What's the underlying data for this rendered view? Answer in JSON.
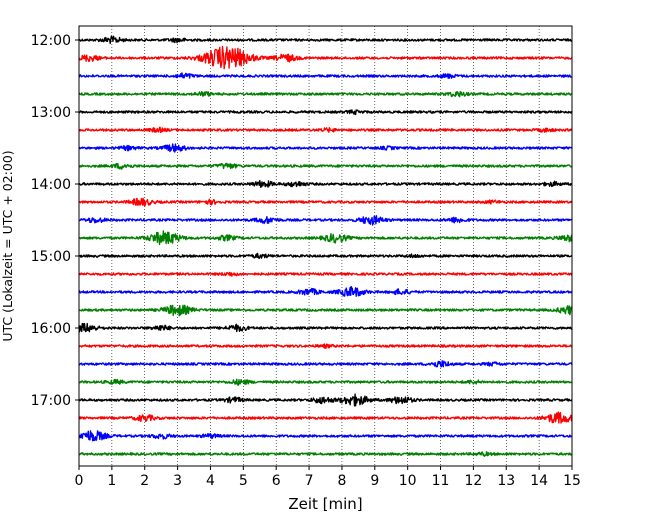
{
  "chart_data": {
    "type": "line",
    "title": "",
    "xlabel": "Zeit  [min]",
    "ylabel": "UTC (Lokalzeit = UTC + 02:00)",
    "xlim": [
      0,
      15
    ],
    "x_ticks": [
      0,
      1,
      2,
      3,
      4,
      5,
      6,
      7,
      8,
      9,
      10,
      11,
      12,
      13,
      14,
      15
    ],
    "x_tick_labels": [
      "0",
      "1",
      "2",
      "3",
      "4",
      "5",
      "6",
      "7",
      "8",
      "9",
      "10",
      "11",
      "12",
      "13",
      "14",
      "15"
    ],
    "y_tick_labels": [
      "12:00",
      "13:00",
      "14:00",
      "15:00",
      "16:00",
      "17:00"
    ],
    "grid": "vertical dotted lines at each minute",
    "trace_interval_min": 15,
    "trace_colors": [
      "#000000",
      "#ff0000",
      "#0000ff",
      "#008000"
    ],
    "traces": [
      {
        "start": "12:00",
        "color": "#000000",
        "bursts": [
          {
            "x": 1.0,
            "amp": 0.25
          },
          {
            "x": 3.0,
            "amp": 0.15
          }
        ]
      },
      {
        "start": "12:15",
        "color": "#ff0000",
        "bursts": [
          {
            "x": 0.3,
            "amp": 0.25
          },
          {
            "x": 4.5,
            "amp": 1.0
          },
          {
            "x": 6.3,
            "amp": 0.3
          }
        ]
      },
      {
        "start": "12:30",
        "color": "#0000ff",
        "bursts": [
          {
            "x": 3.2,
            "amp": 0.2
          },
          {
            "x": 11.2,
            "amp": 0.15
          }
        ]
      },
      {
        "start": "12:45",
        "color": "#008000",
        "bursts": [
          {
            "x": 3.8,
            "amp": 0.15
          },
          {
            "x": 11.5,
            "amp": 0.2
          }
        ]
      },
      {
        "start": "13:00",
        "color": "#000000",
        "bursts": [
          {
            "x": 8.4,
            "amp": 0.12
          }
        ]
      },
      {
        "start": "13:15",
        "color": "#ff0000",
        "bursts": [
          {
            "x": 2.4,
            "amp": 0.15
          },
          {
            "x": 7.6,
            "amp": 0.12
          },
          {
            "x": 14.2,
            "amp": 0.12
          }
        ]
      },
      {
        "start": "13:30",
        "color": "#0000ff",
        "bursts": [
          {
            "x": 1.5,
            "amp": 0.15
          },
          {
            "x": 2.9,
            "amp": 0.3
          },
          {
            "x": 9.4,
            "amp": 0.1
          }
        ]
      },
      {
        "start": "13:45",
        "color": "#008000",
        "bursts": [
          {
            "x": 1.3,
            "amp": 0.2
          },
          {
            "x": 4.5,
            "amp": 0.2
          }
        ]
      },
      {
        "start": "14:00",
        "color": "#000000",
        "bursts": [
          {
            "x": 5.6,
            "amp": 0.25
          },
          {
            "x": 6.6,
            "amp": 0.2
          },
          {
            "x": 14.4,
            "amp": 0.15
          }
        ]
      },
      {
        "start": "14:15",
        "color": "#ff0000",
        "bursts": [
          {
            "x": 1.9,
            "amp": 0.3
          },
          {
            "x": 4.0,
            "amp": 0.15
          },
          {
            "x": 12.6,
            "amp": 0.1
          }
        ]
      },
      {
        "start": "14:30",
        "color": "#0000ff",
        "bursts": [
          {
            "x": 0.5,
            "amp": 0.2
          },
          {
            "x": 5.7,
            "amp": 0.25
          },
          {
            "x": 8.9,
            "amp": 0.35
          },
          {
            "x": 11.5,
            "amp": 0.2
          }
        ]
      },
      {
        "start": "14:45",
        "color": "#008000",
        "bursts": [
          {
            "x": 2.6,
            "amp": 0.55
          },
          {
            "x": 4.5,
            "amp": 0.2
          },
          {
            "x": 7.8,
            "amp": 0.35
          },
          {
            "x": 14.9,
            "amp": 0.25
          }
        ]
      },
      {
        "start": "15:00",
        "color": "#000000",
        "bursts": [
          {
            "x": 5.5,
            "amp": 0.15
          },
          {
            "x": 10.2,
            "amp": 0.1
          }
        ]
      },
      {
        "start": "15:15",
        "color": "#ff0000",
        "bursts": [
          {
            "x": 4.6,
            "amp": 0.12
          }
        ]
      },
      {
        "start": "15:30",
        "color": "#0000ff",
        "bursts": [
          {
            "x": 7.0,
            "amp": 0.25
          },
          {
            "x": 8.3,
            "amp": 0.4
          },
          {
            "x": 9.8,
            "amp": 0.2
          }
        ]
      },
      {
        "start": "15:45",
        "color": "#008000",
        "bursts": [
          {
            "x": 3.0,
            "amp": 0.45
          },
          {
            "x": 14.95,
            "amp": 0.35
          }
        ]
      },
      {
        "start": "16:00",
        "color": "#000000",
        "bursts": [
          {
            "x": 0.2,
            "amp": 0.35
          },
          {
            "x": 2.5,
            "amp": 0.2
          },
          {
            "x": 4.8,
            "amp": 0.25
          }
        ]
      },
      {
        "start": "16:15",
        "color": "#ff0000",
        "bursts": [
          {
            "x": 7.5,
            "amp": 0.1
          }
        ]
      },
      {
        "start": "16:30",
        "color": "#0000ff",
        "bursts": [
          {
            "x": 11.0,
            "amp": 0.25
          },
          {
            "x": 12.6,
            "amp": 0.12
          }
        ]
      },
      {
        "start": "16:45",
        "color": "#008000",
        "bursts": [
          {
            "x": 1.1,
            "amp": 0.15
          },
          {
            "x": 4.9,
            "amp": 0.2
          },
          {
            "x": 12.0,
            "amp": 0.12
          }
        ]
      },
      {
        "start": "17:00",
        "color": "#000000",
        "bursts": [
          {
            "x": 4.7,
            "amp": 0.2
          },
          {
            "x": 7.4,
            "amp": 0.25
          },
          {
            "x": 8.4,
            "amp": 0.45
          },
          {
            "x": 9.8,
            "amp": 0.3
          }
        ]
      },
      {
        "start": "17:15",
        "color": "#ff0000",
        "bursts": [
          {
            "x": 2.0,
            "amp": 0.25
          },
          {
            "x": 14.6,
            "amp": 0.45
          }
        ]
      },
      {
        "start": "17:30",
        "color": "#0000ff",
        "bursts": [
          {
            "x": 0.4,
            "amp": 0.45
          },
          {
            "x": 2.5,
            "amp": 0.2
          },
          {
            "x": 4.0,
            "amp": 0.15
          }
        ]
      },
      {
        "start": "17:45",
        "color": "#008000",
        "bursts": [
          {
            "x": 12.3,
            "amp": 0.12
          }
        ]
      }
    ]
  }
}
